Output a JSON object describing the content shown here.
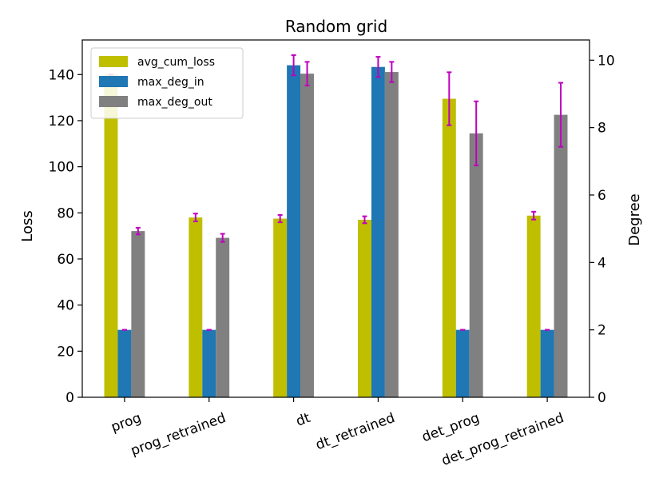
{
  "chart_data": {
    "type": "bar",
    "title": "Random grid",
    "categories": [
      "prog",
      "prog_retrained",
      "dt",
      "dt_retrained",
      "det_prog",
      "det_prog_retrained"
    ],
    "ylabel_left": "Loss",
    "ylabel_right": "Degree",
    "ylim_left": [
      0,
      155
    ],
    "ylim_right": [
      0,
      10.6
    ],
    "yticks_left": [
      0,
      20,
      40,
      60,
      80,
      100,
      120,
      140
    ],
    "yticks_right": [
      0,
      2,
      4,
      6,
      8,
      10
    ],
    "series": [
      {
        "name": "avg_cum_loss",
        "axis": "left",
        "color": "#bfbf00",
        "values": [
          140,
          78,
          77.5,
          77,
          129.5,
          78.8
        ],
        "errors": [
          0,
          1.7,
          1.6,
          1.5,
          11.5,
          1.7
        ]
      },
      {
        "name": "max_deg_in",
        "axis": "right",
        "color": "#1f77b4",
        "values": [
          2.0,
          2.0,
          9.85,
          9.8,
          2.0,
          2.0
        ],
        "errors": [
          0.0,
          0.0,
          0.3,
          0.3,
          0.0,
          0.0
        ]
      },
      {
        "name": "max_deg_out",
        "axis": "right",
        "color": "#808080",
        "values": [
          4.93,
          4.73,
          9.6,
          9.65,
          7.83,
          8.38
        ],
        "errors": [
          0.1,
          0.12,
          0.35,
          0.3,
          0.95,
          0.95
        ]
      }
    ],
    "error_color": "#bf00bf",
    "legend": {
      "location": "top-left",
      "labels": [
        "avg_cum_loss",
        "max_deg_in",
        "max_deg_out"
      ]
    }
  }
}
